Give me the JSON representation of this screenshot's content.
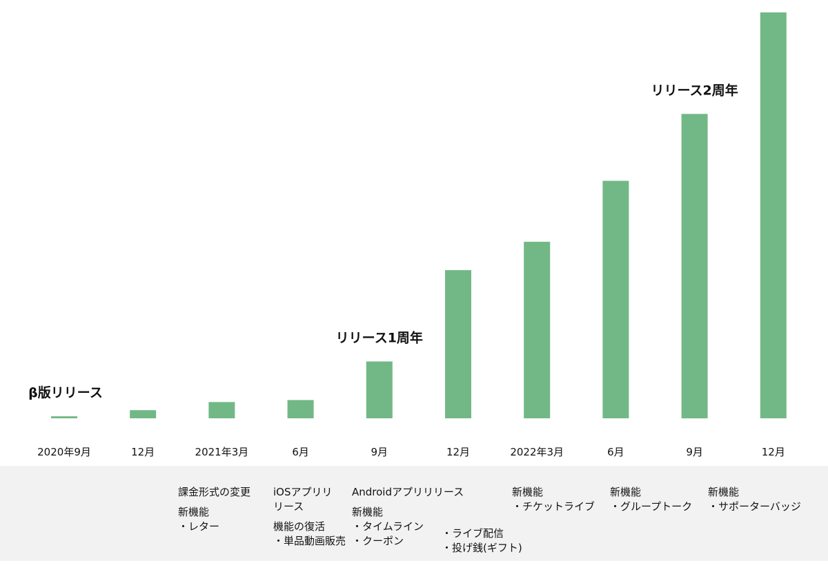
{
  "chart_data": {
    "type": "bar",
    "title": "",
    "xlabel": "",
    "ylabel": "",
    "categories": [
      "2020年9月",
      "12月",
      "2021年3月",
      "6月",
      "9月",
      "12月",
      "2022年3月",
      "6月",
      "9月",
      "12月"
    ],
    "values": [
      0.5,
      2,
      4,
      4.5,
      14,
      36.5,
      43.5,
      58.5,
      75,
      100
    ],
    "ylim": [
      0,
      100
    ],
    "grid": false,
    "bar_color": "#72b886",
    "annotations": [
      {
        "category_index": 0,
        "text": "β版リリース"
      },
      {
        "category_index": 4,
        "text": "リリース1周年"
      },
      {
        "category_index": 8,
        "text": "リリース2周年"
      }
    ]
  },
  "notes": {
    "col2": {
      "line1": "課金形式の変更",
      "group2": [
        "新機能",
        "・レター"
      ]
    },
    "col3": {
      "group1": [
        "iOSアプリリ",
        "リース"
      ],
      "group2": [
        "機能の復活",
        "・単品動画販売"
      ]
    },
    "col4": {
      "line1": "Androidアプリリリース",
      "group2": [
        "新機能",
        "・タイムライン",
        "・クーポン"
      ]
    },
    "col5": {
      "group1": [
        "・ライブ配信",
        "・投げ銭(ギフト)"
      ]
    },
    "col6": {
      "group1": [
        "新機能",
        "・チケットライブ"
      ]
    },
    "col7": {
      "group1": [
        "新機能",
        "・グループトーク"
      ]
    },
    "col8": {
      "group1": [
        "新機能",
        "・サポーターバッジ"
      ]
    }
  }
}
